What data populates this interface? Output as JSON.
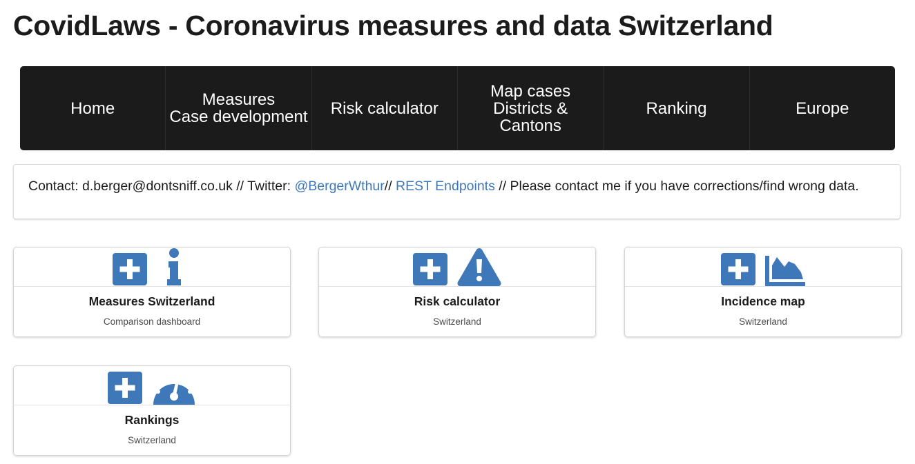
{
  "page": {
    "title": "CovidLaws - Coronavirus measures and data Switzerland"
  },
  "nav": {
    "items": [
      {
        "label": "Home"
      },
      {
        "label": "Measures\nCase development"
      },
      {
        "label": "Risk calculator"
      },
      {
        "label": "Map cases\nDistricts &\nCantons"
      },
      {
        "label": "Ranking"
      },
      {
        "label": "Europe"
      }
    ]
  },
  "contact": {
    "prefix": "Contact: d.berger@dontsniff.co.uk // Twitter: ",
    "twitter": "@BergerWthur",
    "separator": "// ",
    "rest": "REST Endpoints",
    "suffix": " // Please contact me if you have corrections/find wrong data."
  },
  "colors": {
    "accent": "#3f78b8",
    "navbar_bg": "#1b1b1b"
  },
  "cards": [
    {
      "title": "Measures Switzerland",
      "subtitle": "Comparison dashboard",
      "icons": [
        "plus-square-icon",
        "info-icon"
      ]
    },
    {
      "title": "Risk calculator",
      "subtitle": "Switzerland",
      "icons": [
        "plus-square-icon",
        "warning-triangle-icon"
      ]
    },
    {
      "title": "Incidence map",
      "subtitle": "Switzerland",
      "icons": [
        "plus-square-icon",
        "area-chart-icon"
      ]
    },
    {
      "title": "Rankings",
      "subtitle": "Switzerland",
      "icons": [
        "plus-square-icon",
        "speedometer-icon"
      ]
    }
  ]
}
